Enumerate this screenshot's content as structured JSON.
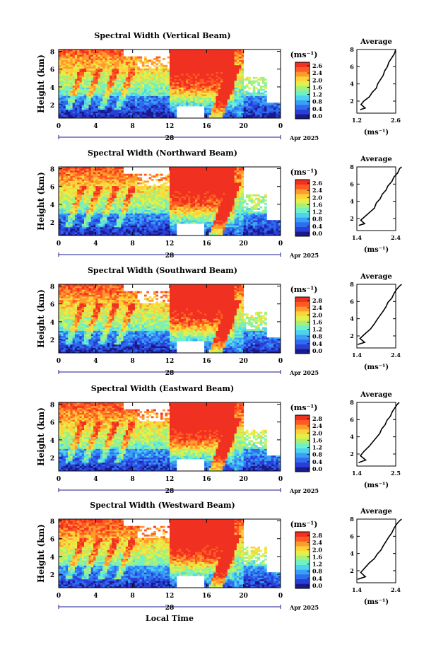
{
  "chart_data": {
    "type": "heatmap",
    "x_label": "Local Time",
    "date_label": "Apr 2025",
    "day_label": "28",
    "x_ticks": [
      "0",
      "4",
      "8",
      "12",
      "16",
      "20",
      "0"
    ],
    "x_range_hours": [
      0,
      24
    ],
    "y_label": "Height (km)",
    "y_ticks": [
      "2",
      "4",
      "6",
      "8"
    ],
    "y_range_km": [
      0.5,
      8.2
    ],
    "colorbar": {
      "unit_label": "(ms⁻¹)",
      "colors": [
        "#1a1a8c",
        "#2a3fd6",
        "#2e6cf0",
        "#39a0f5",
        "#4fd2f0",
        "#6ef0c8",
        "#a6f07a",
        "#e2f04a",
        "#ffd23a",
        "#ff9a2c",
        "#ff5a24",
        "#f03020"
      ]
    },
    "average_panel": {
      "title": "Average",
      "x_unit_label": "(ms⁻¹)",
      "y_ticks": [
        "2",
        "4",
        "6",
        "8"
      ]
    },
    "panels": [
      {
        "title": "Spectral Width (Vertical Beam)",
        "colorbar_ticks": [
          "2.6",
          "2.4",
          "2.0",
          "1.6",
          "1.2",
          "0.8",
          "0.4",
          "0.0"
        ],
        "avg_xticks": [
          "1.2",
          "2.6"
        ],
        "avg_profile": [
          [
            1.32,
            1.0
          ],
          [
            1.5,
            1.2
          ],
          [
            1.35,
            1.6
          ],
          [
            1.45,
            2.0
          ],
          [
            1.65,
            2.5
          ],
          [
            1.75,
            3.0
          ],
          [
            1.9,
            3.5
          ],
          [
            1.95,
            4.0
          ],
          [
            2.05,
            4.5
          ],
          [
            2.15,
            5.0
          ],
          [
            2.2,
            5.5
          ],
          [
            2.3,
            6.0
          ],
          [
            2.35,
            6.5
          ],
          [
            2.45,
            7.0
          ],
          [
            2.55,
            7.5
          ],
          [
            2.6,
            8.0
          ]
        ]
      },
      {
        "title": "Spectral Width (Northward Beam)",
        "colorbar_ticks": [
          "2.6",
          "2.4",
          "2.0",
          "1.6",
          "1.2",
          "0.8",
          "0.4",
          "0.0"
        ],
        "avg_xticks": [
          "1.4",
          "2.4"
        ],
        "avg_profile": [
          [
            1.45,
            1.2
          ],
          [
            1.6,
            1.4
          ],
          [
            1.5,
            1.8
          ],
          [
            1.6,
            2.2
          ],
          [
            1.75,
            2.8
          ],
          [
            1.85,
            3.2
          ],
          [
            1.9,
            3.8
          ],
          [
            2.0,
            4.3
          ],
          [
            2.05,
            4.8
          ],
          [
            2.15,
            5.3
          ],
          [
            2.2,
            5.8
          ],
          [
            2.3,
            6.3
          ],
          [
            2.35,
            6.8
          ],
          [
            2.45,
            7.3
          ],
          [
            2.5,
            7.8
          ],
          [
            2.55,
            8.0
          ]
        ]
      },
      {
        "title": "Spectral Width (Southward Beam)",
        "colorbar_ticks": [
          "2.8",
          "2.4",
          "2.0",
          "1.6",
          "1.2",
          "0.8",
          "0.4",
          "0.0"
        ],
        "avg_xticks": [
          "1.4",
          "2.4"
        ],
        "avg_profile": [
          [
            1.42,
            1.0
          ],
          [
            1.6,
            1.25
          ],
          [
            1.48,
            1.7
          ],
          [
            1.6,
            2.2
          ],
          [
            1.75,
            2.8
          ],
          [
            1.85,
            3.4
          ],
          [
            1.92,
            3.9
          ],
          [
            2.0,
            4.4
          ],
          [
            2.08,
            4.9
          ],
          [
            2.15,
            5.4
          ],
          [
            2.2,
            5.9
          ],
          [
            2.3,
            6.4
          ],
          [
            2.35,
            6.9
          ],
          [
            2.42,
            7.4
          ],
          [
            2.5,
            7.8
          ],
          [
            2.55,
            8.0
          ]
        ]
      },
      {
        "title": "Spectral Width (Eastward Beam)",
        "colorbar_ticks": [
          "2.8",
          "2.4",
          "2.0",
          "1.6",
          "1.2",
          "0.8",
          "0.4",
          "0.0"
        ],
        "avg_xticks": [
          "1.4",
          "2.5"
        ],
        "avg_profile": [
          [
            1.45,
            1.0
          ],
          [
            1.65,
            1.3
          ],
          [
            1.5,
            1.8
          ],
          [
            1.6,
            2.3
          ],
          [
            1.75,
            2.9
          ],
          [
            1.85,
            3.4
          ],
          [
            1.95,
            3.9
          ],
          [
            2.05,
            4.4
          ],
          [
            2.1,
            4.9
          ],
          [
            2.2,
            5.4
          ],
          [
            2.25,
            5.9
          ],
          [
            2.35,
            6.4
          ],
          [
            2.4,
            6.9
          ],
          [
            2.48,
            7.4
          ],
          [
            2.55,
            7.8
          ],
          [
            2.6,
            8.0
          ]
        ]
      },
      {
        "title": "Spectral Width (Westward Beam)",
        "colorbar_ticks": [
          "2.8",
          "2.4",
          "2.0",
          "1.6",
          "1.2",
          "0.8",
          "0.4",
          "0.0"
        ],
        "avg_xticks": [
          "1.4",
          "2.4"
        ],
        "avg_profile": [
          [
            1.42,
            1.0
          ],
          [
            1.62,
            1.3
          ],
          [
            1.5,
            1.8
          ],
          [
            1.6,
            2.3
          ],
          [
            1.72,
            2.9
          ],
          [
            1.85,
            3.4
          ],
          [
            1.92,
            3.9
          ],
          [
            2.02,
            4.4
          ],
          [
            2.08,
            4.9
          ],
          [
            2.15,
            5.4
          ],
          [
            2.22,
            5.9
          ],
          [
            2.3,
            6.4
          ],
          [
            2.35,
            6.9
          ],
          [
            2.42,
            7.4
          ],
          [
            2.5,
            7.8
          ],
          [
            2.55,
            8.0
          ]
        ]
      }
    ]
  }
}
